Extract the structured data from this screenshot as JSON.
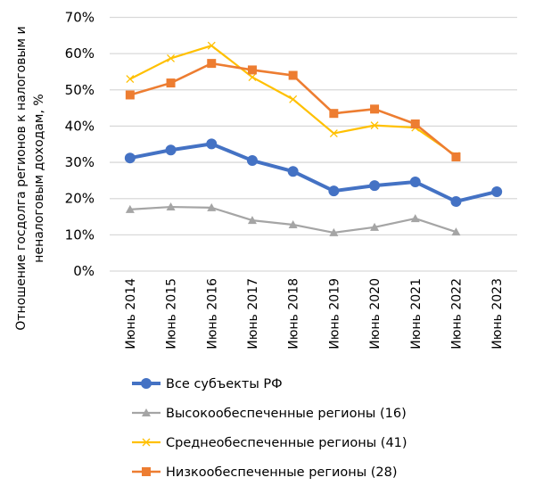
{
  "chart_data": {
    "type": "line",
    "title": "",
    "xlabel": "",
    "ylabel": "Отношение госдолга регионов к налоговым и неналоговым доходам, %",
    "ylabel_lines": [
      "Отношение госдолга регионов к налоговым и",
      "неналоговым доходам, %"
    ],
    "ylim": [
      0,
      70
    ],
    "yticks": [
      0,
      10,
      20,
      30,
      40,
      50,
      60,
      70
    ],
    "ytick_labels": [
      "0%",
      "10%",
      "20%",
      "30%",
      "40%",
      "50%",
      "60%",
      "70%"
    ],
    "grid": true,
    "legend_position": "bottom",
    "categories": [
      "Июнь 2014",
      "Июнь 2015",
      "Июнь 2016",
      "Июнь 2017",
      "Июнь 2018",
      "Июнь 2019",
      "Июнь 2020",
      "Июнь 2021",
      "Июнь 2022",
      "Июнь 2023"
    ],
    "series": [
      {
        "name": "Все субъекты РФ",
        "color": "#4472C4",
        "marker": "circle",
        "values": [
          31.2,
          33.4,
          35.1,
          30.5,
          27.5,
          22.1,
          23.6,
          24.6,
          19.2,
          21.9
        ]
      },
      {
        "name": "Высокообеспеченные регионы (16)",
        "color": "#A5A5A5",
        "marker": "triangle",
        "values": [
          17.0,
          17.7,
          17.5,
          14.0,
          12.8,
          10.6,
          12.1,
          14.5,
          10.8,
          null
        ]
      },
      {
        "name": "Среднеобеспеченные регионы (41)",
        "color": "#FFC000",
        "marker": "x",
        "values": [
          53.0,
          58.7,
          62.2,
          53.5,
          47.4,
          38.0,
          40.2,
          39.6,
          31.8,
          null
        ]
      },
      {
        "name": "Низкообеспеченные регионы (28)",
        "color": "#ED7D31",
        "marker": "square",
        "values": [
          48.6,
          51.9,
          57.3,
          55.5,
          54.0,
          43.5,
          44.7,
          40.6,
          31.5,
          null
        ]
      }
    ]
  },
  "colors": {
    "grid": "#D9D9D9",
    "background": "#FFFFFF"
  }
}
